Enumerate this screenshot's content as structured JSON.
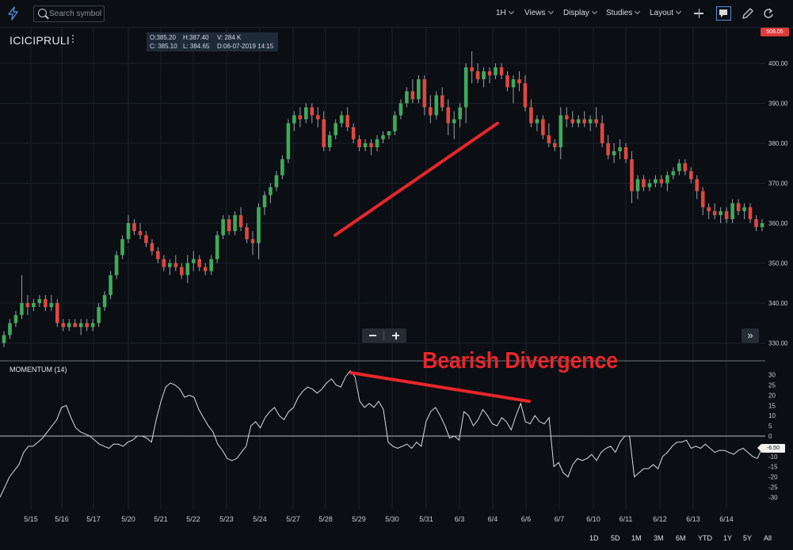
{
  "toolbar": {
    "search_placeholder": "Search symbol",
    "interval": "1H",
    "menus": [
      "Views",
      "Display",
      "Studies",
      "Layout"
    ],
    "icons": [
      "bolt-icon",
      "search-icon",
      "chevron-down-icon",
      "plus-icon",
      "comment-icon",
      "pencil-icon",
      "refresh-icon"
    ]
  },
  "symbol": "ICICIPRULI",
  "ohlc": {
    "open": "O:385.20",
    "high": "H:387.40",
    "volume": "V: 284 K",
    "close": "C: 385.10",
    "low": "L: 384.65",
    "date": "D:06-07-2019 14:15"
  },
  "last_price_badge": "508.05",
  "colors": {
    "background": "#0b0e13",
    "up_candle": "#3dab5a",
    "down_candle": "#e0473f",
    "momentum_line": "#d9dce1",
    "annotation_red": "#e8262a",
    "grid": "#1b222c"
  },
  "range_buttons": [
    "1D",
    "5D",
    "1M",
    "3M",
    "6M",
    "YTD",
    "1Y",
    "5Y",
    "All"
  ],
  "annotation": "Bearish Divergence",
  "chart_data": [
    {
      "type": "candlestick",
      "interval": "1H",
      "y_ticks": [
        "400.00",
        "390.00",
        "380.00",
        "370.00",
        "360.00",
        "350.00",
        "340.00",
        "330.00"
      ],
      "ylim": [
        327,
        404
      ],
      "x_ticks": [
        "5/15",
        "5/16",
        "5/17",
        "5/20",
        "5/21",
        "5/22",
        "5/23",
        "5/24",
        "5/27",
        "5/28",
        "5/29",
        "5/30",
        "5/31",
        "6/3",
        "6/4",
        "6/6",
        "6/7",
        "6/10",
        "6/11",
        "6/12",
        "6/13",
        "6/14"
      ],
      "trendline": {
        "from": {
          "x": "5/28",
          "y": 357
        },
        "to": {
          "x": "6/4",
          "y": 385
        },
        "color": "#e8262a"
      },
      "candles": [
        [
          330,
          333,
          329,
          332
        ],
        [
          332,
          336,
          331,
          335
        ],
        [
          335,
          338,
          334,
          337
        ],
        [
          337,
          347,
          336,
          340
        ],
        [
          340,
          342,
          337,
          339
        ],
        [
          339,
          341,
          338,
          340
        ],
        [
          340,
          342,
          339,
          341
        ],
        [
          341,
          342,
          338,
          339
        ],
        [
          339,
          342,
          338,
          340
        ],
        [
          340,
          341,
          334,
          335
        ],
        [
          335,
          336,
          333,
          334
        ],
        [
          334,
          336,
          333,
          335
        ],
        [
          335,
          336,
          334,
          334
        ],
        [
          334,
          336,
          332,
          335
        ],
        [
          335,
          336,
          333,
          334
        ],
        [
          334,
          336,
          333,
          335
        ],
        [
          335,
          340,
          334,
          339
        ],
        [
          339,
          343,
          338,
          342
        ],
        [
          342,
          348,
          341,
          347
        ],
        [
          347,
          353,
          346,
          352
        ],
        [
          352,
          357,
          351,
          356
        ],
        [
          356,
          362,
          355,
          360
        ],
        [
          360,
          361,
          357,
          358
        ],
        [
          358,
          360,
          356,
          357
        ],
        [
          357,
          358,
          354,
          355
        ],
        [
          355,
          356,
          352,
          353
        ],
        [
          353,
          354,
          350,
          351
        ],
        [
          351,
          352,
          348,
          349
        ],
        [
          349,
          351,
          347,
          350
        ],
        [
          350,
          352,
          348,
          349
        ],
        [
          349,
          350,
          346,
          347
        ],
        [
          347,
          352,
          345,
          350
        ],
        [
          350,
          353,
          348,
          351
        ],
        [
          351,
          352,
          348,
          349
        ],
        [
          349,
          350,
          347,
          348
        ],
        [
          348,
          352,
          347,
          351
        ],
        [
          351,
          358,
          350,
          357
        ],
        [
          357,
          362,
          356,
          361
        ],
        [
          361,
          362,
          357,
          358
        ],
        [
          358,
          363,
          357,
          362
        ],
        [
          362,
          364,
          358,
          359
        ],
        [
          359,
          360,
          355,
          356
        ],
        [
          356,
          358,
          352,
          355
        ],
        [
          355,
          365,
          351,
          364
        ],
        [
          364,
          368,
          362,
          367
        ],
        [
          367,
          370,
          365,
          369
        ],
        [
          369,
          373,
          368,
          372
        ],
        [
          372,
          377,
          371,
          376
        ],
        [
          376,
          386,
          375,
          385
        ],
        [
          385,
          388,
          383,
          387
        ],
        [
          387,
          389,
          384,
          386
        ],
        [
          386,
          390,
          385,
          389
        ],
        [
          389,
          390,
          385,
          387
        ],
        [
          387,
          389,
          384,
          386
        ],
        [
          386,
          388,
          378,
          379
        ],
        [
          379,
          383,
          378,
          382
        ],
        [
          382,
          386,
          381,
          385
        ],
        [
          385,
          388,
          384,
          387
        ],
        [
          387,
          389,
          383,
          384
        ],
        [
          384,
          385,
          380,
          381
        ],
        [
          381,
          382,
          378,
          379
        ],
        [
          379,
          381,
          378,
          380
        ],
        [
          380,
          381,
          377,
          379
        ],
        [
          379,
          382,
          378,
          381
        ],
        [
          381,
          383,
          380,
          382
        ],
        [
          382,
          383,
          381,
          383
        ],
        [
          383,
          388,
          382,
          387
        ],
        [
          387,
          391,
          386,
          390
        ],
        [
          390,
          394,
          389,
          393
        ],
        [
          393,
          396,
          390,
          391
        ],
        [
          391,
          397,
          390,
          396
        ],
        [
          396,
          397,
          387,
          389
        ],
        [
          389,
          392,
          385,
          387
        ],
        [
          387,
          393,
          386,
          392
        ],
        [
          392,
          394,
          388,
          389
        ],
        [
          389,
          391,
          382,
          385
        ],
        [
          385,
          388,
          381,
          386
        ],
        [
          386,
          390,
          384,
          389
        ],
        [
          389,
          400,
          385,
          399
        ],
        [
          399,
          403,
          395,
          398
        ],
        [
          398,
          400,
          395,
          396
        ],
        [
          396,
          399,
          394,
          398
        ],
        [
          398,
          399,
          395,
          397
        ],
        [
          397,
          400,
          396,
          399
        ],
        [
          399,
          400,
          396,
          397
        ],
        [
          397,
          398,
          393,
          394
        ],
        [
          394,
          397,
          390,
          396
        ],
        [
          396,
          398,
          393,
          395
        ],
        [
          395,
          397,
          388,
          389
        ],
        [
          389,
          391,
          384,
          385
        ],
        [
          385,
          387,
          383,
          386
        ],
        [
          386,
          387,
          381,
          382
        ],
        [
          382,
          385,
          379,
          380
        ],
        [
          380,
          381,
          378,
          379
        ],
        [
          379,
          389,
          376,
          387
        ],
        [
          387,
          389,
          384,
          386
        ],
        [
          386,
          388,
          384,
          385
        ],
        [
          385,
          387,
          384,
          386
        ],
        [
          386,
          388,
          384,
          385
        ],
        [
          385,
          387,
          383,
          386
        ],
        [
          386,
          389,
          384,
          385
        ],
        [
          385,
          387,
          379,
          380
        ],
        [
          380,
          382,
          376,
          377
        ],
        [
          377,
          380,
          375,
          378
        ],
        [
          378,
          381,
          376,
          379
        ],
        [
          379,
          380,
          375,
          376
        ],
        [
          376,
          378,
          365,
          368
        ],
        [
          368,
          372,
          366,
          371
        ],
        [
          371,
          372,
          368,
          369
        ],
        [
          369,
          371,
          368,
          370
        ],
        [
          370,
          372,
          369,
          371
        ],
        [
          371,
          372,
          369,
          370
        ],
        [
          370,
          373,
          368,
          372
        ],
        [
          372,
          374,
          371,
          373
        ],
        [
          373,
          376,
          372,
          375
        ],
        [
          375,
          376,
          372,
          373
        ],
        [
          373,
          374,
          370,
          371
        ],
        [
          371,
          372,
          366,
          368
        ],
        [
          368,
          369,
          362,
          364
        ],
        [
          364,
          365,
          361,
          363
        ],
        [
          363,
          365,
          361,
          362
        ],
        [
          362,
          364,
          360,
          363
        ],
        [
          363,
          364,
          360,
          361
        ],
        [
          361,
          366,
          360,
          365
        ],
        [
          365,
          366,
          362,
          363
        ],
        [
          363,
          365,
          361,
          364
        ],
        [
          364,
          365,
          360,
          361
        ],
        [
          361,
          362,
          358,
          359
        ],
        [
          359,
          361,
          358,
          360
        ]
      ]
    },
    {
      "type": "line",
      "title": "MOMENTUM (14)",
      "y_ticks": [
        "30",
        "25",
        "20",
        "15",
        "10",
        "5",
        "0",
        "-5",
        "-10",
        "-15",
        "-20",
        "-25",
        "-30"
      ],
      "ylim": [
        -32,
        34
      ],
      "current_value": "-6.50",
      "annotation_line": {
        "from": {
          "x": "5/28",
          "y": 31
        },
        "to": {
          "x": "6/6",
          "y": 17
        },
        "color": "#e8262a"
      },
      "values": [
        -30,
        -25,
        -20,
        -17,
        -14,
        -8,
        -5,
        -5,
        -3,
        -1,
        2,
        5,
        8,
        14,
        15,
        9,
        4,
        2,
        1,
        0,
        -2,
        -4,
        -5,
        -6,
        -4,
        -4,
        -5,
        -3,
        -2,
        0,
        0,
        -1,
        -3,
        8,
        17,
        24,
        26,
        25,
        23,
        19,
        20,
        19,
        13,
        9,
        5,
        2,
        -4,
        -7,
        -11,
        -12,
        -11,
        -8,
        -5,
        5,
        7,
        4,
        9,
        12,
        14,
        10,
        8,
        12,
        14,
        19,
        22,
        24,
        23,
        21,
        23,
        26,
        28,
        25,
        24,
        29,
        32,
        29,
        17,
        14,
        16,
        14,
        17,
        13,
        -3,
        -5,
        -6,
        -5,
        -4,
        -6,
        -3,
        -5,
        7,
        12,
        14,
        10,
        5,
        -1,
        0,
        -2,
        12,
        10,
        5,
        8,
        13,
        10,
        6,
        5,
        9,
        7,
        3,
        10,
        16,
        7,
        6,
        10,
        7,
        6,
        9,
        -15,
        -13,
        -18,
        -20,
        -14,
        -11,
        -12,
        -11,
        -9,
        -12,
        -8,
        -6,
        -5,
        -8,
        -3,
        0,
        0,
        -20,
        -18,
        -16,
        -16,
        -14,
        -16,
        -10,
        -8,
        -5,
        -3,
        -3,
        -2,
        -6,
        -5,
        -6,
        -4,
        -6,
        -8,
        -7,
        -7,
        -8,
        -9,
        -7,
        -6,
        -8,
        -10,
        -11,
        -6
      ]
    }
  ]
}
